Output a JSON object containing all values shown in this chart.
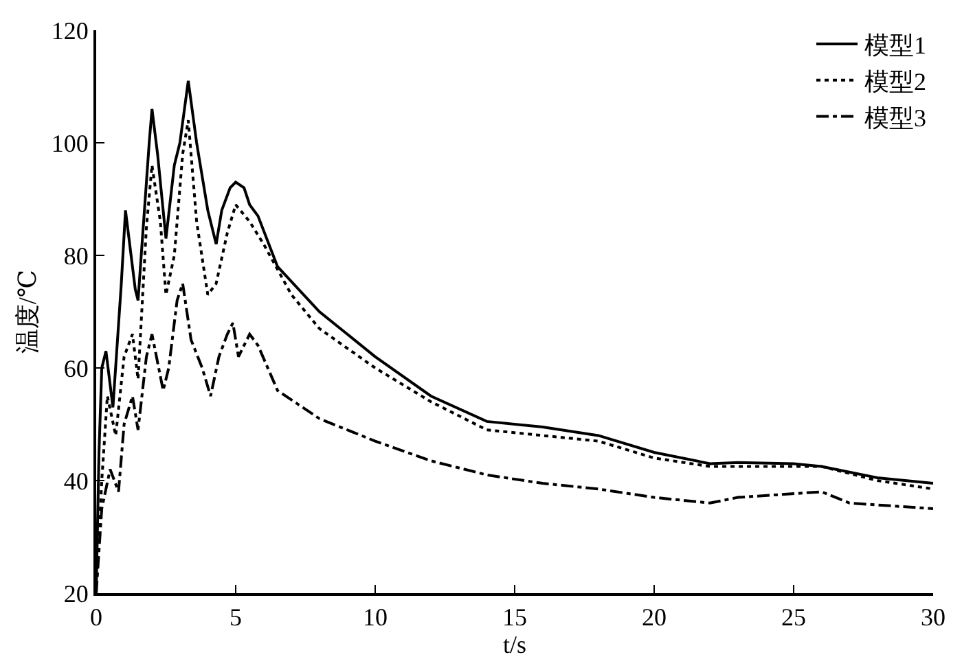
{
  "chart_data": {
    "type": "line",
    "xlabel": "t/s",
    "ylabel": "温度/℃",
    "xlim": [
      0,
      30
    ],
    "xticks": [
      0,
      5,
      10,
      15,
      20,
      25,
      30
    ],
    "ylim": [
      20,
      120
    ],
    "yticks": [
      20,
      40,
      60,
      80,
      100,
      120
    ],
    "legend": "top right",
    "marker": "none",
    "series": [
      {
        "name": "模型1",
        "color": "#000000",
        "line_style": "solid",
        "x": [
          0,
          0.1,
          0.2,
          0.35,
          0.6,
          0.9,
          1.05,
          1.4,
          1.5,
          1.9,
          2.0,
          2.2,
          2.5,
          2.8,
          3.0,
          3.3,
          3.6,
          4.0,
          4.3,
          4.5,
          4.8,
          5.0,
          5.3,
          5.5,
          5.8,
          6.5,
          8,
          10,
          12,
          14,
          16,
          18,
          20,
          22,
          23,
          25,
          26,
          28,
          30
        ],
        "values": [
          20,
          45,
          60,
          63,
          53,
          75,
          88,
          74,
          72,
          100,
          106,
          98,
          83,
          96,
          100,
          111,
          100,
          88,
          82,
          88,
          92,
          93,
          92,
          89,
          87,
          78,
          70,
          62,
          55,
          50.5,
          49.5,
          48,
          45,
          43,
          43.2,
          43,
          42.5,
          40.5,
          39.5
        ]
      },
      {
        "name": "模型2",
        "color": "#000000",
        "line_style": "dotted",
        "x": [
          0,
          0.2,
          0.4,
          0.7,
          1.0,
          1.3,
          1.5,
          1.8,
          2.0,
          2.3,
          2.5,
          2.8,
          3.1,
          3.3,
          3.6,
          4.0,
          4.3,
          4.7,
          5.0,
          5.5,
          6,
          7,
          8,
          10,
          12,
          14,
          16,
          18,
          20,
          22,
          26,
          28,
          30
        ],
        "values": [
          20,
          40,
          55,
          48,
          62,
          66,
          58,
          85,
          96,
          86,
          73,
          80,
          98,
          104,
          86,
          73,
          75,
          84,
          89,
          86,
          82,
          73,
          67,
          60,
          54,
          49,
          48,
          47,
          44,
          42.5,
          42.5,
          40,
          38.5
        ]
      },
      {
        "name": "模型3",
        "color": "#000000",
        "line_style": "dashdot",
        "x": [
          0,
          0.2,
          0.5,
          0.8,
          1.0,
          1.3,
          1.5,
          1.8,
          2.0,
          2.4,
          2.6,
          2.9,
          3.1,
          3.4,
          3.8,
          4.1,
          4.4,
          4.7,
          4.9,
          5.1,
          5.5,
          5.8,
          6.5,
          8,
          10,
          12,
          14,
          16,
          18,
          20,
          22,
          23,
          26,
          27,
          30
        ],
        "values": [
          20,
          35,
          42,
          38,
          50,
          55,
          49,
          62,
          66,
          56,
          60,
          72,
          75,
          65,
          60,
          55,
          62,
          66,
          68,
          62,
          66,
          64,
          56,
          51,
          47,
          43.5,
          41,
          39.5,
          38.5,
          37,
          36,
          37,
          38,
          36,
          35
        ]
      }
    ]
  }
}
